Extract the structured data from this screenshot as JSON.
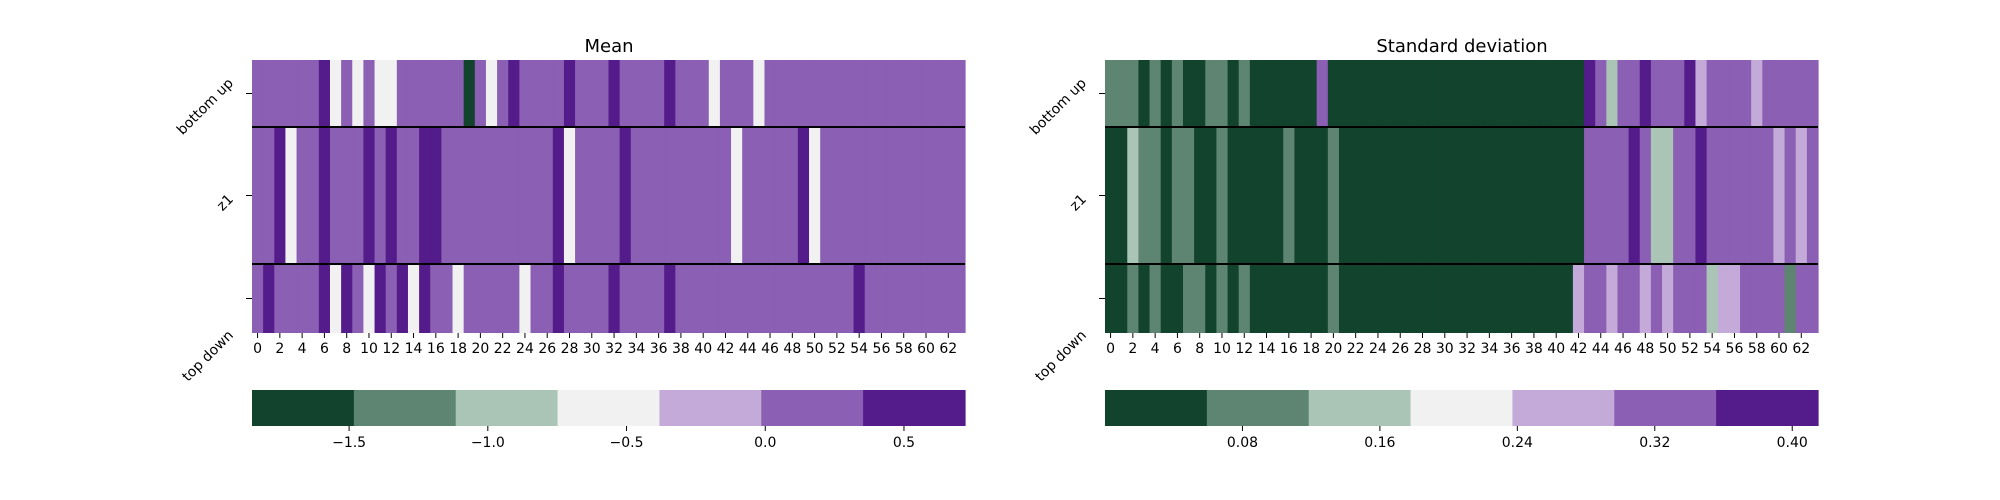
{
  "palette": [
    "#12432d",
    "#5e8571",
    "#aac4b6",
    "#f1f1f1",
    "#c4aad8",
    "#8b5fb3",
    "#541b8a"
  ],
  "row_separator_color": "#000000",
  "chart_data": [
    {
      "type": "heatmap",
      "title": "Mean",
      "rows": [
        "bottom up",
        "z1",
        "top down"
      ],
      "columns": [
        0,
        1,
        2,
        3,
        4,
        5,
        6,
        7,
        8,
        9,
        10,
        11,
        12,
        13,
        14,
        15,
        16,
        17,
        18,
        19,
        20,
        21,
        22,
        23,
        24,
        25,
        26,
        27,
        28,
        29,
        30,
        31,
        32,
        33,
        34,
        35,
        36,
        37,
        38,
        39,
        40,
        41,
        42,
        43,
        44,
        45,
        46,
        47,
        48,
        49,
        50,
        51,
        52,
        53,
        54,
        55,
        56,
        57,
        58,
        59,
        60,
        61,
        62,
        63
      ],
      "xticks": [
        "0",
        "2",
        "4",
        "6",
        "8",
        "10",
        "12",
        "14",
        "16",
        "18",
        "20",
        "22",
        "24",
        "26",
        "28",
        "30",
        "32",
        "34",
        "36",
        "38",
        "40",
        "42",
        "44",
        "46",
        "48",
        "50",
        "52",
        "54",
        "56",
        "58",
        "60",
        "62"
      ],
      "values": [
        [
          0.0,
          0.2,
          0.2,
          0.2,
          0.2,
          0.2,
          0.6,
          -0.5,
          0.2,
          -0.5,
          0.0,
          -0.5,
          -0.5,
          0.2,
          0.0,
          0.2,
          0.0,
          0.0,
          0.0,
          -1.7,
          0.2,
          -0.5,
          0.0,
          0.6,
          0.0,
          0.2,
          0.0,
          0.2,
          0.6,
          0.2,
          0.0,
          0.2,
          0.6,
          0.0,
          0.2,
          0.0,
          0.2,
          0.6,
          0.2,
          0.0,
          0.2,
          -0.5,
          0.2,
          0.2,
          0.0,
          -0.5,
          0.2,
          0.0,
          0.0,
          0.0,
          0.0,
          0.2,
          0.2,
          0.0,
          0.2,
          0.0,
          0.2,
          0.2,
          0.0,
          0.2,
          0.2,
          0.0,
          0.2,
          0.0
        ],
        [
          0.2,
          0.2,
          0.6,
          -0.5,
          0.0,
          0.2,
          0.6,
          0.2,
          0.2,
          0.2,
          0.6,
          0.2,
          0.6,
          0.0,
          0.2,
          0.6,
          0.6,
          0.0,
          0.0,
          0.0,
          0.2,
          0.2,
          0.0,
          0.2,
          0.2,
          0.2,
          0.2,
          0.6,
          -0.5,
          0.2,
          0.0,
          0.0,
          0.2,
          0.6,
          0.0,
          0.2,
          0.2,
          0.0,
          0.2,
          0.0,
          0.2,
          0.2,
          0.2,
          -0.5,
          0.0,
          0.0,
          0.0,
          0.2,
          0.2,
          0.6,
          -0.5,
          0.2,
          0.2,
          0.2,
          0.2,
          0.2,
          0.0,
          0.2,
          0.2,
          0.0,
          0.0,
          0.0,
          0.2,
          0.2
        ],
        [
          0.2,
          0.6,
          0.2,
          0.0,
          0.2,
          0.2,
          0.6,
          -0.5,
          0.6,
          0.2,
          -0.5,
          0.6,
          0.2,
          0.6,
          -0.5,
          0.6,
          0.2,
          0.2,
          -0.5,
          0.0,
          0.2,
          0.2,
          0.2,
          0.2,
          -0.5,
          0.0,
          0.2,
          0.6,
          0.2,
          0.2,
          0.0,
          0.2,
          0.6,
          0.2,
          0.0,
          0.2,
          0.2,
          0.6,
          0.2,
          0.0,
          0.2,
          0.0,
          0.2,
          0.2,
          0.0,
          0.2,
          0.0,
          0.2,
          0.0,
          0.2,
          0.2,
          0.2,
          0.2,
          0.2,
          0.6,
          0.0,
          0.0,
          0.0,
          0.0,
          0.2,
          0.2,
          0.2,
          0.2,
          0.2
        ]
      ],
      "colorbar": {
        "min": -1.85,
        "max": 0.72,
        "ticks": [
          -1.5,
          -1.0,
          -0.5,
          0.0,
          0.5
        ],
        "tick_labels": [
          "−1.5",
          "−1.0",
          "−0.5",
          "0.0",
          "0.5"
        ]
      }
    },
    {
      "type": "heatmap",
      "title": "Standard deviation",
      "rows": [
        "bottom up",
        "z1",
        "top down"
      ],
      "columns": [
        0,
        1,
        2,
        3,
        4,
        5,
        6,
        7,
        8,
        9,
        10,
        11,
        12,
        13,
        14,
        15,
        16,
        17,
        18,
        19,
        20,
        21,
        22,
        23,
        24,
        25,
        26,
        27,
        28,
        29,
        30,
        31,
        32,
        33,
        34,
        35,
        36,
        37,
        38,
        39,
        40,
        41,
        42,
        43,
        44,
        45,
        46,
        47,
        48,
        49,
        50,
        51,
        52,
        53,
        54,
        55,
        56,
        57,
        58,
        59,
        60,
        61,
        62,
        63
      ],
      "xticks": [
        "0",
        "2",
        "4",
        "6",
        "8",
        "10",
        "12",
        "14",
        "16",
        "18",
        "20",
        "22",
        "24",
        "26",
        "28",
        "30",
        "32",
        "34",
        "36",
        "38",
        "40",
        "42",
        "44",
        "46",
        "48",
        "50",
        "52",
        "54",
        "56",
        "58",
        "60",
        "62"
      ],
      "values": [
        [
          0.06,
          0.06,
          0.06,
          0.02,
          0.06,
          0.02,
          0.06,
          0.02,
          0.02,
          0.06,
          0.06,
          0.02,
          0.06,
          0.02,
          0.02,
          0.02,
          0.02,
          0.02,
          0.02,
          0.34,
          0.02,
          0.02,
          0.02,
          0.02,
          0.02,
          0.02,
          0.02,
          0.02,
          0.02,
          0.02,
          0.02,
          0.02,
          0.02,
          0.02,
          0.02,
          0.02,
          0.02,
          0.02,
          0.02,
          0.02,
          0.02,
          0.02,
          0.02,
          0.39,
          0.34,
          0.14,
          0.34,
          0.34,
          0.39,
          0.34,
          0.34,
          0.34,
          0.39,
          0.29,
          0.34,
          0.34,
          0.34,
          0.34,
          0.29,
          0.34,
          0.34,
          0.34,
          0.34,
          0.34
        ],
        [
          0.02,
          0.02,
          0.14,
          0.06,
          0.06,
          0.02,
          0.06,
          0.06,
          0.02,
          0.02,
          0.06,
          0.02,
          0.02,
          0.02,
          0.02,
          0.02,
          0.06,
          0.02,
          0.02,
          0.02,
          0.06,
          0.02,
          0.02,
          0.02,
          0.02,
          0.02,
          0.02,
          0.02,
          0.02,
          0.02,
          0.02,
          0.02,
          0.02,
          0.02,
          0.02,
          0.02,
          0.02,
          0.02,
          0.02,
          0.02,
          0.02,
          0.02,
          0.02,
          0.34,
          0.34,
          0.34,
          0.34,
          0.39,
          0.34,
          0.14,
          0.14,
          0.34,
          0.34,
          0.39,
          0.34,
          0.34,
          0.34,
          0.34,
          0.34,
          0.34,
          0.29,
          0.34,
          0.29,
          0.34
        ],
        [
          0.02,
          0.02,
          0.06,
          0.02,
          0.06,
          0.02,
          0.02,
          0.06,
          0.06,
          0.02,
          0.06,
          0.02,
          0.06,
          0.02,
          0.02,
          0.02,
          0.02,
          0.02,
          0.02,
          0.02,
          0.06,
          0.02,
          0.02,
          0.02,
          0.02,
          0.02,
          0.02,
          0.02,
          0.02,
          0.02,
          0.02,
          0.02,
          0.02,
          0.02,
          0.02,
          0.02,
          0.02,
          0.02,
          0.02,
          0.02,
          0.02,
          0.02,
          0.29,
          0.34,
          0.34,
          0.29,
          0.34,
          0.34,
          0.29,
          0.34,
          0.29,
          0.34,
          0.34,
          0.34,
          0.14,
          0.29,
          0.29,
          0.34,
          0.34,
          0.34,
          0.34,
          0.06,
          0.34,
          0.34
        ]
      ],
      "colorbar": {
        "min": 0.0,
        "max": 0.415,
        "ticks": [
          0.08,
          0.16,
          0.24,
          0.32,
          0.4
        ],
        "tick_labels": [
          "0.08",
          "0.16",
          "0.24",
          "0.32",
          "0.40"
        ]
      }
    }
  ]
}
